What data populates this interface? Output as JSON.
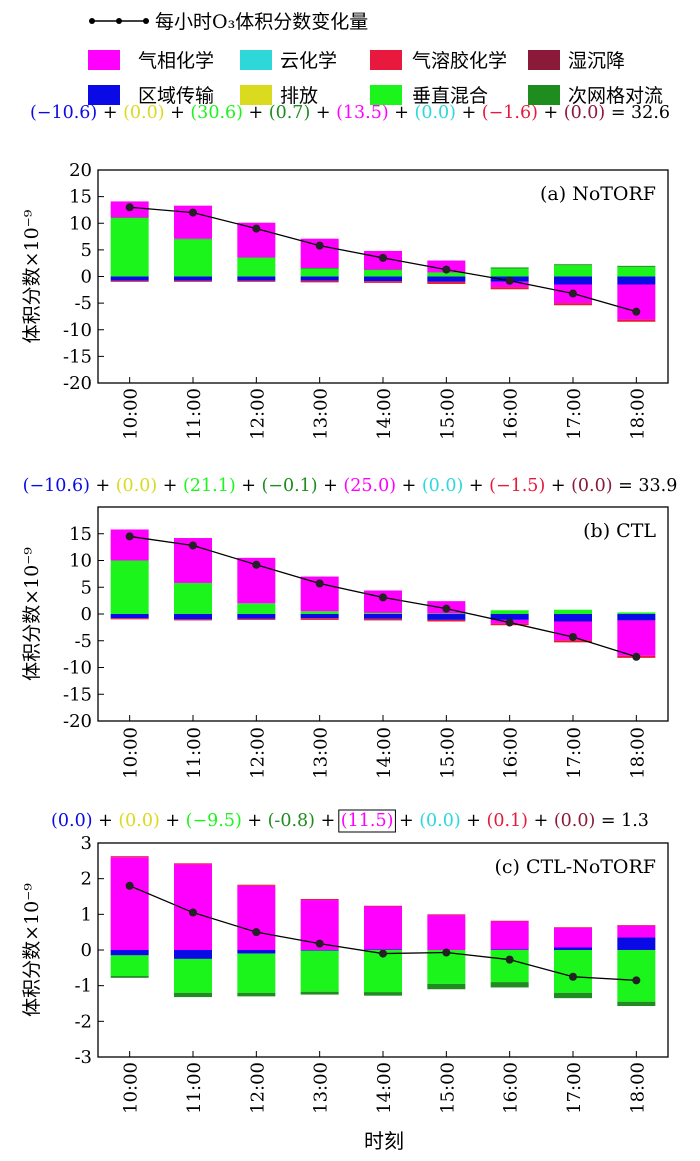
{
  "legend": {
    "line": {
      "label": "每小时O₃体积分数变化量",
      "color": "#000000"
    },
    "items": [
      {
        "key": "chem",
        "label": "气相化学",
        "color": "#FF00FF"
      },
      {
        "key": "cloud",
        "label": "云化学",
        "color": "#2ED8D8"
      },
      {
        "key": "aero",
        "label": "气溶胶化学",
        "color": "#E8193C"
      },
      {
        "key": "wet",
        "label": "湿沉降",
        "color": "#8B1A3A"
      },
      {
        "key": "adv",
        "label": "区域传输",
        "color": "#0A0AE6"
      },
      {
        "key": "emis",
        "label": "排放",
        "color": "#DADA1E"
      },
      {
        "key": "vmix",
        "label": "垂直混合",
        "color": "#1BF51B"
      },
      {
        "key": "dry",
        "label": "次网格对流",
        "color": "#1E8C1E"
      }
    ]
  },
  "xlabel": "时刻",
  "chart_data": [
    {
      "type": "bar",
      "stacked": true,
      "panel_label": "(a) NoTORF",
      "ylabel": "体积分数×10⁻⁹",
      "ylim": [
        -20,
        20
      ],
      "yticks": [
        20,
        15,
        10,
        5,
        0,
        -5,
        -10,
        -15,
        -20
      ],
      "categories": [
        "10:00",
        "11:00",
        "12:00",
        "13:00",
        "14:00",
        "15:00",
        "16:00",
        "17:00",
        "18:00"
      ],
      "equation": {
        "terms": [
          {
            "text": "(−10.6)",
            "color": "#0A0AE6"
          },
          {
            "text": "(0.0)",
            "color": "#DADA1E"
          },
          {
            "text": "(30.6)",
            "color": "#1BF51B"
          },
          {
            "text": "(0.7)",
            "color": "#1E8C1E"
          },
          {
            "text": "(13.5)",
            "color": "#FF00FF"
          },
          {
            "text": "(0.0)",
            "color": "#2ED8D8"
          },
          {
            "text": "(−1.6)",
            "color": "#E8193C"
          },
          {
            "text": "(0.0)",
            "color": "#8B1A3A"
          }
        ],
        "total": "32.6"
      },
      "series": [
        {
          "key": "adv",
          "values": [
            -0.8,
            -0.8,
            -0.8,
            -0.8,
            -0.9,
            -1.0,
            -1.0,
            -1.5,
            -1.5
          ]
        },
        {
          "key": "emis",
          "values": [
            0,
            0,
            0,
            0,
            0,
            0,
            0,
            0,
            0
          ]
        },
        {
          "key": "vmix",
          "values": [
            11.0,
            7.0,
            3.5,
            1.5,
            1.2,
            0.7,
            1.5,
            2.1,
            1.8
          ]
        },
        {
          "key": "dry",
          "values": [
            0.1,
            0.1,
            0.1,
            0.1,
            0.1,
            0.1,
            0.2,
            0.2,
            0.2
          ]
        },
        {
          "key": "chem",
          "values": [
            3.0,
            6.2,
            6.5,
            5.5,
            3.5,
            2.2,
            -1.0,
            -3.5,
            -6.6
          ]
        },
        {
          "key": "cloud",
          "values": [
            0,
            0,
            0,
            0,
            0,
            0,
            0,
            0,
            0
          ]
        },
        {
          "key": "aero",
          "values": [
            -0.2,
            -0.2,
            -0.2,
            -0.3,
            -0.3,
            -0.4,
            -0.4,
            -0.4,
            -0.4
          ]
        },
        {
          "key": "wet",
          "values": [
            0,
            0,
            0,
            0,
            0,
            0,
            0,
            0,
            0
          ]
        }
      ],
      "line": {
        "values": [
          13.0,
          12.0,
          9.0,
          5.8,
          3.5,
          1.3,
          -0.8,
          -3.2,
          -6.6
        ]
      }
    },
    {
      "type": "bar",
      "stacked": true,
      "panel_label": "(b) CTL",
      "ylabel": "体积分数×10⁻⁹",
      "ylim": [
        -20,
        20
      ],
      "yticks": [
        15,
        10,
        5,
        0,
        -5,
        -10,
        -15,
        -20
      ],
      "categories": [
        "10:00",
        "11:00",
        "12:00",
        "13:00",
        "14:00",
        "15:00",
        "16:00",
        "17:00",
        "18:00"
      ],
      "equation": {
        "terms": [
          {
            "text": "(−10.6)",
            "color": "#0A0AE6"
          },
          {
            "text": "(0.0)",
            "color": "#DADA1E"
          },
          {
            "text": "(21.1)",
            "color": "#1BF51B"
          },
          {
            "text": "(−0.1)",
            "color": "#1E8C1E"
          },
          {
            "text": "(25.0)",
            "color": "#FF00FF"
          },
          {
            "text": "(0.0)",
            "color": "#2ED8D8"
          },
          {
            "text": "(−1.5)",
            "color": "#E8193C"
          },
          {
            "text": "(0.0)",
            "color": "#8B1A3A"
          }
        ],
        "total": "33.9"
      },
      "series": [
        {
          "key": "adv",
          "values": [
            -0.8,
            -1.0,
            -0.9,
            -0.8,
            -0.9,
            -1.1,
            -1.1,
            -1.4,
            -1.2
          ]
        },
        {
          "key": "emis",
          "values": [
            0,
            0,
            0,
            0,
            0,
            0,
            0,
            0,
            0
          ]
        },
        {
          "key": "vmix",
          "values": [
            10.0,
            5.8,
            2.0,
            0.5,
            0.2,
            0.1,
            0.7,
            0.8,
            0.3
          ]
        },
        {
          "key": "dry",
          "values": [
            0.0,
            0.0,
            0.0,
            0.0,
            0.0,
            0.0,
            0.0,
            0.0,
            0.0
          ]
        },
        {
          "key": "chem",
          "values": [
            5.8,
            8.4,
            8.5,
            6.5,
            4.2,
            2.3,
            -0.7,
            -3.5,
            -6.6
          ]
        },
        {
          "key": "cloud",
          "values": [
            0,
            0,
            0,
            0,
            0,
            0,
            0,
            0,
            0
          ]
        },
        {
          "key": "aero",
          "values": [
            -0.2,
            -0.2,
            -0.2,
            -0.3,
            -0.3,
            -0.3,
            -0.3,
            -0.4,
            -0.4
          ]
        },
        {
          "key": "wet",
          "values": [
            0,
            0,
            0,
            0,
            0,
            0,
            0,
            0,
            0
          ]
        }
      ],
      "line": {
        "values": [
          14.5,
          12.8,
          9.2,
          5.7,
          3.1,
          1.0,
          -1.6,
          -4.3,
          -8.0
        ]
      }
    },
    {
      "type": "bar",
      "stacked": true,
      "panel_label": "(c) CTL-NoTORF",
      "ylabel": "体积分数×10⁻⁹",
      "ylim": [
        -3,
        3
      ],
      "yticks": [
        3,
        2,
        1,
        0,
        -1,
        -2,
        -3
      ],
      "categories": [
        "10:00",
        "11:00",
        "12:00",
        "13:00",
        "14:00",
        "15:00",
        "16:00",
        "17:00",
        "18:00"
      ],
      "equation": {
        "terms": [
          {
            "text": "(0.0)",
            "color": "#0A0AE6"
          },
          {
            "text": "(0.0)",
            "color": "#DADA1E"
          },
          {
            "text": "(−9.5)",
            "color": "#1BF51B"
          },
          {
            "text": "(-0.8)",
            "color": "#1E8C1E"
          },
          {
            "text": "(11.5)",
            "color": "#FF00FF",
            "boxed": true
          },
          {
            "text": "(0.0)",
            "color": "#2ED8D8"
          },
          {
            "text": "(0.1)",
            "color": "#E8193C"
          },
          {
            "text": "(0.0)",
            "color": "#8B1A3A"
          }
        ],
        "total": "1.3"
      },
      "series": [
        {
          "key": "adv",
          "values": [
            -0.15,
            -0.25,
            -0.1,
            -0.02,
            0.02,
            0.0,
            0.02,
            0.07,
            0.35
          ]
        },
        {
          "key": "emis",
          "values": [
            0,
            0,
            0,
            0,
            0,
            0,
            0,
            0,
            0
          ]
        },
        {
          "key": "vmix",
          "values": [
            -0.58,
            -0.95,
            -1.1,
            -1.15,
            -1.18,
            -0.95,
            -0.9,
            -1.2,
            -1.45
          ]
        },
        {
          "key": "dry",
          "values": [
            -0.05,
            -0.12,
            -0.1,
            -0.08,
            -0.1,
            -0.15,
            -0.15,
            -0.15,
            -0.12
          ]
        },
        {
          "key": "chem",
          "values": [
            2.6,
            2.4,
            1.8,
            1.4,
            1.2,
            0.98,
            0.78,
            0.55,
            0.33
          ]
        },
        {
          "key": "cloud",
          "values": [
            0,
            0,
            0,
            0,
            0,
            0,
            0,
            0,
            0
          ]
        },
        {
          "key": "aero",
          "values": [
            0.03,
            0.03,
            0.03,
            0.03,
            0.02,
            0.02,
            0.02,
            0.02,
            0.02
          ]
        },
        {
          "key": "wet",
          "values": [
            0,
            0,
            0,
            0,
            0,
            0,
            0,
            0,
            0
          ]
        }
      ],
      "line": {
        "values": [
          1.8,
          1.05,
          0.5,
          0.18,
          -0.1,
          -0.07,
          -0.27,
          -0.75,
          -0.85
        ]
      }
    }
  ]
}
